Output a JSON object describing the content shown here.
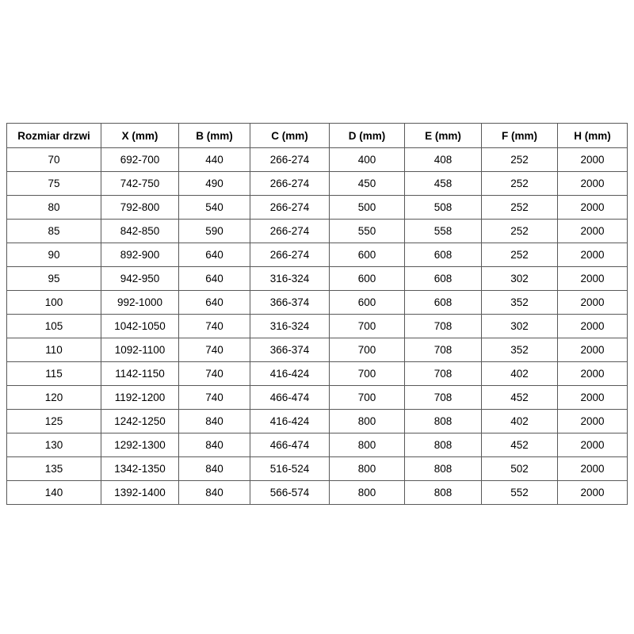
{
  "colors": {
    "border": "#595959",
    "text": "#000000",
    "background": "#ffffff"
  },
  "table": {
    "columns": [
      "Rozmiar drzwi",
      "X (mm)",
      "B (mm)",
      "C (mm)",
      "D (mm)",
      "E (mm)",
      "F (mm)",
      "H (mm)"
    ],
    "rows": [
      [
        "70",
        "692-700",
        "440",
        "266-274",
        "400",
        "408",
        "252",
        "2000"
      ],
      [
        "75",
        "742-750",
        "490",
        "266-274",
        "450",
        "458",
        "252",
        "2000"
      ],
      [
        "80",
        "792-800",
        "540",
        "266-274",
        "500",
        "508",
        "252",
        "2000"
      ],
      [
        "85",
        "842-850",
        "590",
        "266-274",
        "550",
        "558",
        "252",
        "2000"
      ],
      [
        "90",
        "892-900",
        "640",
        "266-274",
        "600",
        "608",
        "252",
        "2000"
      ],
      [
        "95",
        "942-950",
        "640",
        "316-324",
        "600",
        "608",
        "302",
        "2000"
      ],
      [
        "100",
        "992-1000",
        "640",
        "366-374",
        "600",
        "608",
        "352",
        "2000"
      ],
      [
        "105",
        "1042-1050",
        "740",
        "316-324",
        "700",
        "708",
        "302",
        "2000"
      ],
      [
        "110",
        "1092-1100",
        "740",
        "366-374",
        "700",
        "708",
        "352",
        "2000"
      ],
      [
        "115",
        "1142-1150",
        "740",
        "416-424",
        "700",
        "708",
        "402",
        "2000"
      ],
      [
        "120",
        "1192-1200",
        "740",
        "466-474",
        "700",
        "708",
        "452",
        "2000"
      ],
      [
        "125",
        "1242-1250",
        "840",
        "416-424",
        "800",
        "808",
        "402",
        "2000"
      ],
      [
        "130",
        "1292-1300",
        "840",
        "466-474",
        "800",
        "808",
        "452",
        "2000"
      ],
      [
        "135",
        "1342-1350",
        "840",
        "516-524",
        "800",
        "808",
        "502",
        "2000"
      ],
      [
        "140",
        "1392-1400",
        "840",
        "566-574",
        "800",
        "808",
        "552",
        "2000"
      ]
    ]
  },
  "chart_data": {
    "type": "table",
    "title": "",
    "columns": [
      "Rozmiar drzwi",
      "X (mm)",
      "B (mm)",
      "C (mm)",
      "D (mm)",
      "E (mm)",
      "F (mm)",
      "H (mm)"
    ],
    "rows": [
      [
        "70",
        "692-700",
        "440",
        "266-274",
        "400",
        "408",
        "252",
        "2000"
      ],
      [
        "75",
        "742-750",
        "490",
        "266-274",
        "450",
        "458",
        "252",
        "2000"
      ],
      [
        "80",
        "792-800",
        "540",
        "266-274",
        "500",
        "508",
        "252",
        "2000"
      ],
      [
        "85",
        "842-850",
        "590",
        "266-274",
        "550",
        "558",
        "252",
        "2000"
      ],
      [
        "90",
        "892-900",
        "640",
        "266-274",
        "600",
        "608",
        "252",
        "2000"
      ],
      [
        "95",
        "942-950",
        "640",
        "316-324",
        "600",
        "608",
        "302",
        "2000"
      ],
      [
        "100",
        "992-1000",
        "640",
        "366-374",
        "600",
        "608",
        "352",
        "2000"
      ],
      [
        "105",
        "1042-1050",
        "740",
        "316-324",
        "700",
        "708",
        "302",
        "2000"
      ],
      [
        "110",
        "1092-1100",
        "740",
        "366-374",
        "700",
        "708",
        "352",
        "2000"
      ],
      [
        "115",
        "1142-1150",
        "740",
        "416-424",
        "700",
        "708",
        "402",
        "2000"
      ],
      [
        "120",
        "1192-1200",
        "740",
        "466-474",
        "700",
        "708",
        "452",
        "2000"
      ],
      [
        "125",
        "1242-1250",
        "840",
        "416-424",
        "800",
        "808",
        "402",
        "2000"
      ],
      [
        "130",
        "1292-1300",
        "840",
        "466-474",
        "800",
        "808",
        "452",
        "2000"
      ],
      [
        "135",
        "1342-1350",
        "840",
        "516-524",
        "800",
        "808",
        "502",
        "2000"
      ],
      [
        "140",
        "1392-1400",
        "840",
        "566-574",
        "800",
        "808",
        "552",
        "2000"
      ]
    ]
  }
}
